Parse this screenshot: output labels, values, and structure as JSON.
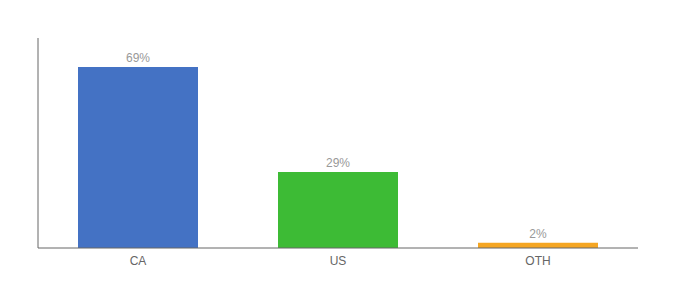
{
  "chart_data": {
    "type": "bar",
    "categories": [
      "CA",
      "US",
      "OTH"
    ],
    "values": [
      69,
      29,
      2
    ],
    "value_labels": [
      "69%",
      "29%",
      "2%"
    ],
    "colors": [
      "#4472c4",
      "#3dbb35",
      "#f5a623"
    ],
    "ylim": [
      0,
      80
    ],
    "data_labels": true,
    "tick_labels": "x",
    "grid": false
  }
}
